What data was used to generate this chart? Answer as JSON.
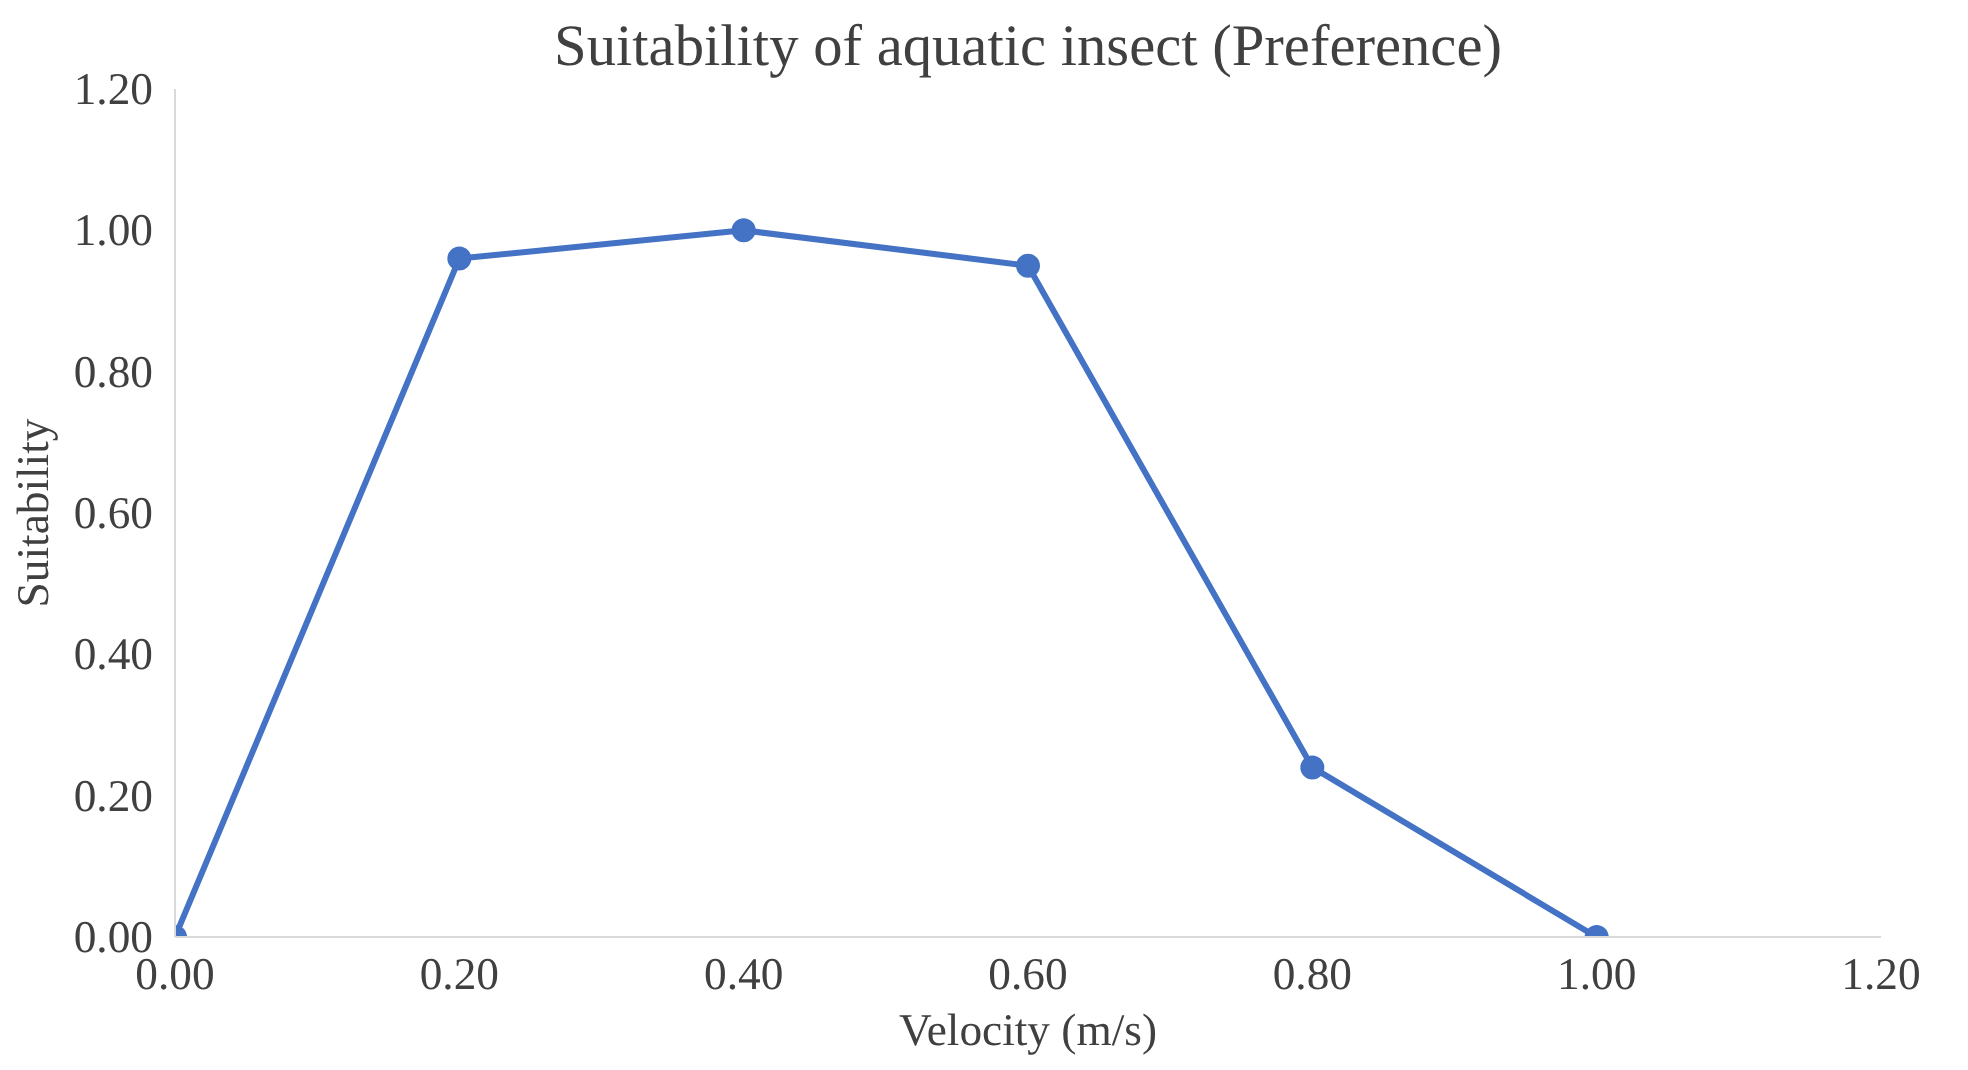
{
  "chart_data": {
    "type": "line",
    "title": "Suitability of aquatic insect (Preference)",
    "xlabel": "Velocity (m/s)",
    "ylabel": "Suitability",
    "x": [
      0,
      0.2,
      0.4,
      0.6,
      0.8,
      1.0
    ],
    "series": [
      {
        "color": "#4472c4",
        "values": [
          0,
          0.96,
          1.0,
          0.95,
          0.24,
          0
        ]
      }
    ],
    "xlim": [
      0,
      1.2
    ],
    "ylim": [
      0,
      1.2
    ],
    "xticks": [
      {
        "value": 0,
        "label": "0.00"
      },
      {
        "value": 0.2,
        "label": "0.20"
      },
      {
        "value": 0.4,
        "label": "0.40"
      },
      {
        "value": 0.6,
        "label": "0.60"
      },
      {
        "value": 0.8,
        "label": "0.80"
      },
      {
        "value": 1.0,
        "label": "1.00"
      },
      {
        "value": 1.2,
        "label": "1.20"
      }
    ],
    "yticks": [
      {
        "value": 0,
        "label": "0.00"
      },
      {
        "value": 0.2,
        "label": "0.20"
      },
      {
        "value": 0.4,
        "label": "0.40"
      },
      {
        "value": 0.6,
        "label": "0.60"
      },
      {
        "value": 0.8,
        "label": "0.80"
      },
      {
        "value": 1.0,
        "label": "1.00"
      },
      {
        "value": 1.2,
        "label": "1.20"
      }
    ],
    "grid": false,
    "marker": "circle",
    "line_style": "solid"
  }
}
